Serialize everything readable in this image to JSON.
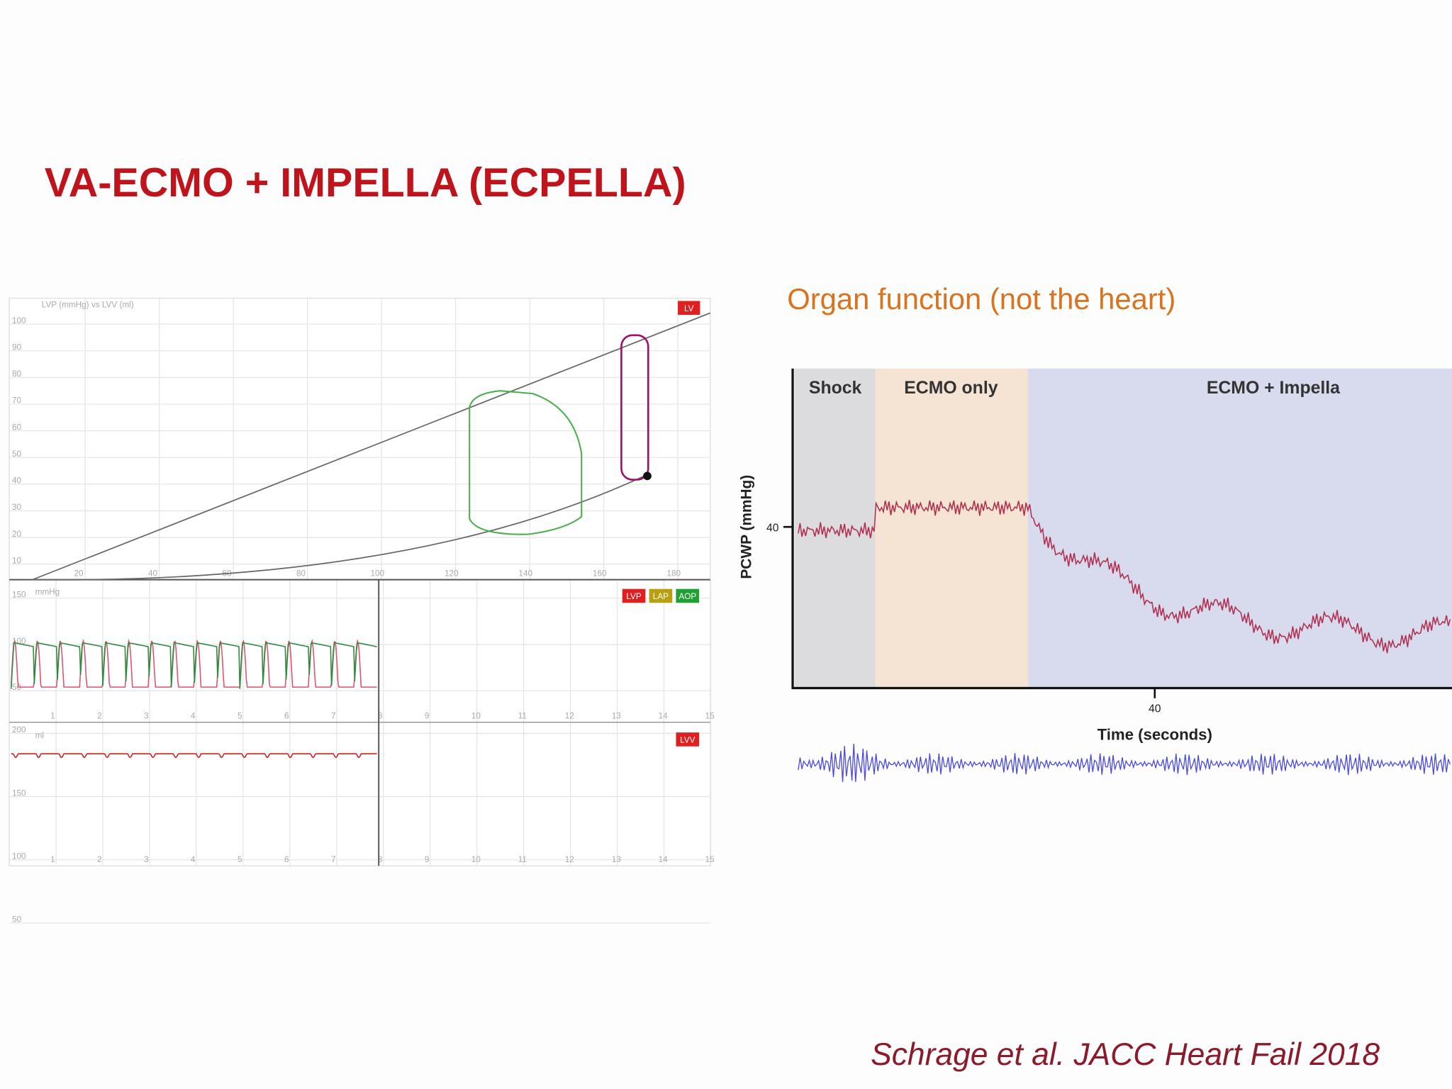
{
  "title": "VA-ECMO + IMPELLA (ECPELLA)",
  "simulator": {
    "pv_loop": {
      "title": "LVP (mmHg) vs LVV (ml)",
      "badge": "LV",
      "x_ticks": [
        20,
        40,
        60,
        80,
        100,
        120,
        140,
        160,
        180
      ],
      "y_ticks": [
        10,
        20,
        30,
        40,
        50,
        60,
        70,
        80,
        90,
        100
      ]
    },
    "pressure": {
      "unit": "mmHg",
      "legend": [
        "LVP",
        "LAP",
        "AOP"
      ],
      "y_ticks": [
        150,
        100,
        50
      ],
      "x_ticks": [
        1,
        2,
        3,
        4,
        5,
        6,
        7,
        8,
        9,
        10,
        11,
        12,
        13,
        14,
        15
      ]
    },
    "volume": {
      "unit": "ml",
      "legend": [
        "LVV"
      ],
      "y_ticks": [
        200,
        150,
        100,
        50
      ],
      "x_ticks": [
        1,
        2,
        3,
        4,
        5,
        6,
        7,
        8,
        9,
        10,
        11,
        12,
        13,
        14,
        15
      ]
    }
  },
  "organ_panel": {
    "subtitle": "Organ function (not the heart)",
    "phases": [
      "Shock",
      "ECMO only",
      "ECMO + Impella"
    ],
    "y_axis_label": "PCWP (mmHg)",
    "y_tick": 40,
    "x_tick": 40,
    "x_axis_label": "Time (seconds)"
  },
  "citation": "Schrage et al. JACC Heart Fail 2018"
}
